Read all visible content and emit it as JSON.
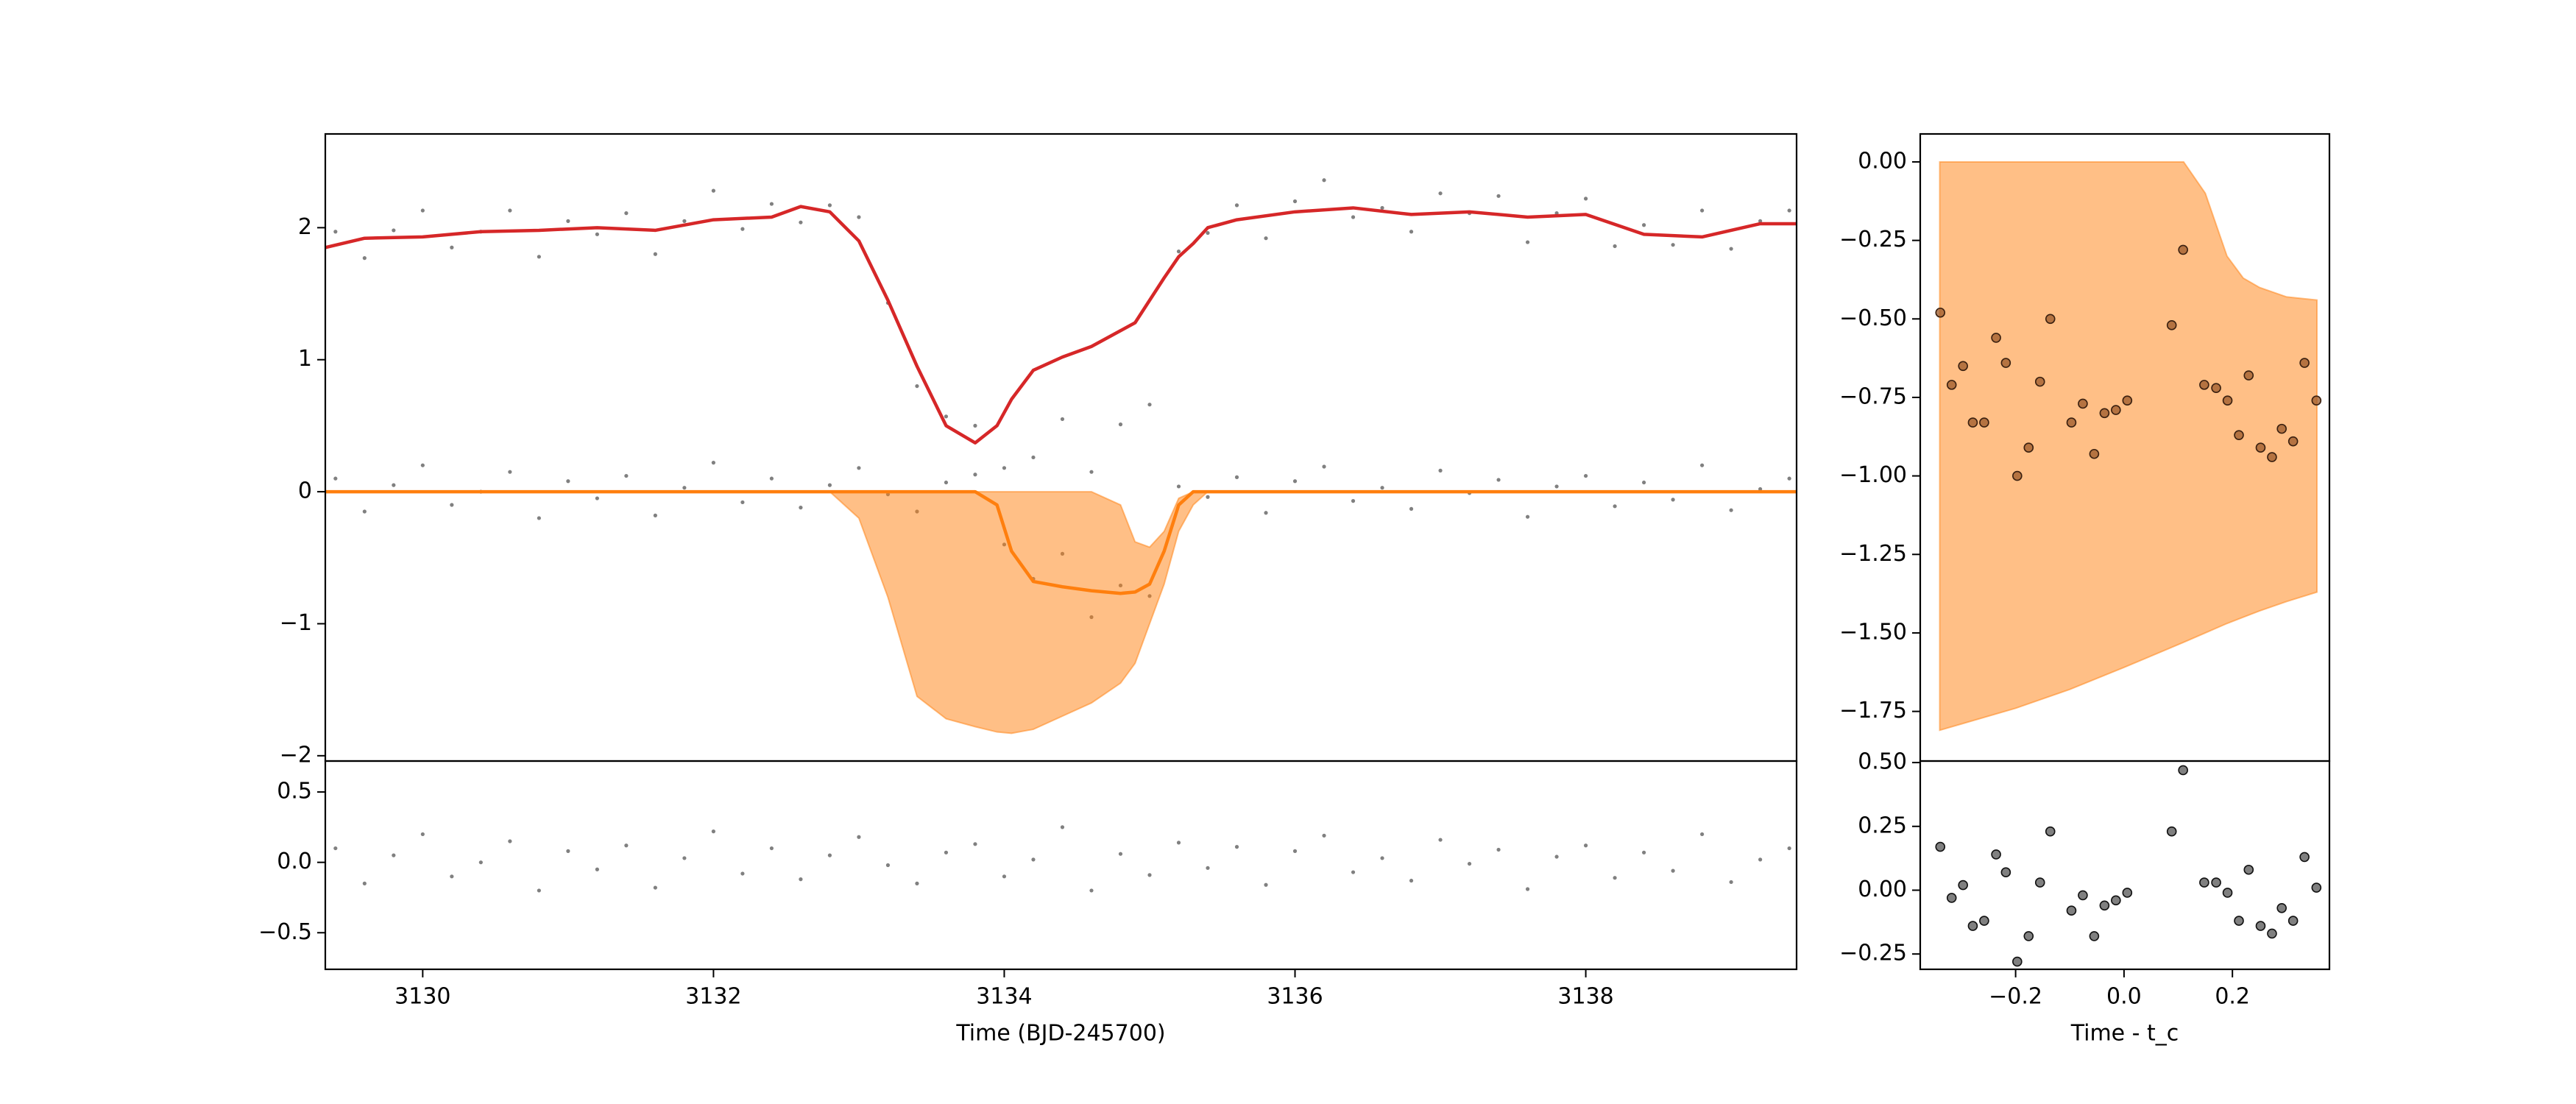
{
  "chart_data": [
    {
      "type": "line",
      "xlim": [
        3129.33,
        3139.45
      ],
      "ylim": [
        -2.04,
        2.71
      ],
      "yticks": [
        {
          "value": -2,
          "label": "−2"
        },
        {
          "value": -1,
          "label": "−1"
        },
        0,
        1,
        2
      ],
      "series": [
        {
          "type": "scatter",
          "color": "#808080",
          "x": [
            3129.4,
            3129.6,
            3129.8,
            3130.0,
            3130.2,
            3130.4,
            3130.6,
            3130.8,
            3131.0,
            3131.2,
            3131.4,
            3131.6,
            3131.8,
            3132.0,
            3132.2,
            3132.4,
            3132.6,
            3132.8,
            3133.0,
            3133.2,
            3133.4,
            3133.6,
            3133.8,
            3134.0,
            3134.2,
            3134.4,
            3134.6,
            3134.8,
            3135.0,
            3135.2,
            3135.4,
            3135.6,
            3135.8,
            3136.0,
            3136.2,
            3136.4,
            3136.6,
            3136.8,
            3137.0,
            3137.2,
            3137.4,
            3137.6,
            3137.8,
            3138.0,
            3138.2,
            3138.4,
            3138.6,
            3138.8,
            3139.0,
            3139.2,
            3139.4
          ],
          "values": [
            1.97,
            1.77,
            1.98,
            2.13,
            1.85,
            1.97,
            2.13,
            1.78,
            2.05,
            1.95,
            2.11,
            1.8,
            2.05,
            2.28,
            1.99,
            2.18,
            2.04,
            2.17,
            2.08,
            1.43,
            0.8,
            0.57,
            0.5,
            0.18,
            0.26,
            0.55,
            0.15,
            0.51,
            0.66,
            1.82,
            1.96,
            2.17,
            1.92,
            2.2,
            2.36,
            2.08,
            2.15,
            1.97,
            2.26,
            2.11,
            2.24,
            1.89,
            2.11,
            2.22,
            1.86,
            2.02,
            1.87,
            2.13,
            1.84,
            2.05,
            2.13
          ]
        },
        {
          "type": "scatter",
          "color": "#808080",
          "x": [
            3129.4,
            3129.6,
            3129.8,
            3130.0,
            3130.2,
            3130.4,
            3130.6,
            3130.8,
            3131.0,
            3131.2,
            3131.4,
            3131.6,
            3131.8,
            3132.0,
            3132.2,
            3132.4,
            3132.6,
            3132.8,
            3133.0,
            3133.2,
            3133.4,
            3133.6,
            3133.8,
            3134.0,
            3134.2,
            3134.4,
            3134.6,
            3134.8,
            3135.0,
            3135.2,
            3135.4,
            3135.6,
            3135.8,
            3136.0,
            3136.2,
            3136.4,
            3136.6,
            3136.8,
            3137.0,
            3137.2,
            3137.4,
            3137.6,
            3137.8,
            3138.0,
            3138.2,
            3138.4,
            3138.6,
            3138.8,
            3139.0,
            3139.2,
            3139.4
          ],
          "values": [
            0.1,
            -0.15,
            0.05,
            0.2,
            -0.1,
            0.0,
            0.15,
            -0.2,
            0.08,
            -0.05,
            0.12,
            -0.18,
            0.03,
            0.22,
            -0.08,
            0.1,
            -0.12,
            0.05,
            0.18,
            -0.02,
            -0.15,
            0.07,
            0.13,
            -0.4,
            -0.66,
            -0.47,
            -0.95,
            -0.71,
            -0.79,
            0.04,
            -0.04,
            0.11,
            -0.16,
            0.08,
            0.19,
            -0.07,
            0.03,
            -0.13,
            0.16,
            -0.01,
            0.09,
            -0.19,
            0.04,
            0.12,
            -0.11,
            0.07,
            -0.06,
            0.2,
            -0.14,
            0.02,
            0.1
          ]
        },
        {
          "type": "band",
          "color": "#ff7f0e",
          "alpha": 0.5,
          "x": [
            3129.33,
            3129.6,
            3130.0,
            3130.4,
            3130.8,
            3131.2,
            3131.6,
            3132.0,
            3132.4,
            3132.6,
            3132.8,
            3133.0,
            3133.2,
            3133.4,
            3133.6,
            3133.8,
            3133.95,
            3134.05,
            3134.2,
            3134.4,
            3134.6,
            3134.8,
            3134.9,
            3135.0,
            3135.1,
            3135.2,
            3135.3,
            3135.4,
            3135.6,
            3136.0,
            3136.4,
            3136.8,
            3137.2,
            3137.6,
            3138.0,
            3138.4,
            3138.8,
            3139.2,
            3139.45
          ],
          "values": [
            0,
            0,
            0,
            0,
            0,
            0,
            0,
            0,
            0,
            0,
            0,
            -0.2,
            -0.8,
            -1.55,
            -1.72,
            -1.78,
            -1.82,
            -1.83,
            -1.8,
            -1.7,
            -1.6,
            -1.45,
            -1.3,
            -1.0,
            -0.7,
            -0.3,
            -0.1,
            0,
            0,
            0,
            0,
            0,
            0,
            0,
            0,
            0,
            0,
            0,
            0
          ],
          "upper": [
            0,
            0,
            0,
            0,
            0,
            0,
            0,
            0,
            0,
            0,
            0,
            0,
            0,
            0,
            0,
            0,
            0,
            0,
            0,
            0,
            0,
            -0.1,
            -0.38,
            -0.42,
            -0.3,
            -0.05,
            0,
            0,
            0,
            0,
            0,
            0,
            0,
            0,
            0,
            0,
            0,
            0,
            0
          ]
        },
        {
          "type": "line",
          "color": "#d62728",
          "x": [
            3129.33,
            3129.6,
            3130.0,
            3130.4,
            3130.8,
            3131.2,
            3131.6,
            3132.0,
            3132.4,
            3132.6,
            3132.8,
            3133.0,
            3133.2,
            3133.4,
            3133.6,
            3133.8,
            3133.95,
            3134.05,
            3134.2,
            3134.4,
            3134.6,
            3134.8,
            3134.9,
            3135.0,
            3135.1,
            3135.2,
            3135.3,
            3135.4,
            3135.6,
            3136.0,
            3136.4,
            3136.8,
            3137.2,
            3137.6,
            3138.0,
            3138.4,
            3138.8,
            3139.2,
            3139.45
          ],
          "values": [
            1.85,
            1.92,
            1.93,
            1.97,
            1.98,
            2.0,
            1.98,
            2.06,
            2.08,
            2.16,
            2.12,
            1.9,
            1.45,
            0.95,
            0.5,
            0.37,
            0.5,
            0.7,
            0.92,
            1.02,
            1.1,
            1.22,
            1.28,
            1.45,
            1.62,
            1.78,
            1.88,
            2.0,
            2.06,
            2.12,
            2.15,
            2.1,
            2.12,
            2.08,
            2.1,
            1.95,
            1.93,
            2.03,
            2.03
          ]
        },
        {
          "type": "line",
          "color": "#ff7f0e",
          "x": [
            3129.33,
            3129.6,
            3130.0,
            3130.4,
            3130.8,
            3131.2,
            3131.6,
            3132.0,
            3132.4,
            3132.6,
            3132.8,
            3133.0,
            3133.2,
            3133.4,
            3133.6,
            3133.8,
            3133.95,
            3134.05,
            3134.2,
            3134.4,
            3134.6,
            3134.8,
            3134.9,
            3135.0,
            3135.1,
            3135.2,
            3135.3,
            3135.4,
            3135.6,
            3136.0,
            3136.4,
            3136.8,
            3137.2,
            3137.6,
            3138.0,
            3138.4,
            3138.8,
            3139.2,
            3139.45
          ],
          "values": [
            0,
            0,
            0,
            0,
            0,
            0,
            0,
            0,
            0,
            0,
            0,
            0,
            0,
            0,
            0,
            0,
            -0.1,
            -0.45,
            -0.68,
            -0.72,
            -0.75,
            -0.77,
            -0.76,
            -0.7,
            -0.45,
            -0.1,
            0,
            0,
            0,
            0,
            0,
            0,
            0,
            0,
            0,
            0,
            0,
            0,
            0
          ]
        }
      ]
    },
    {
      "type": "scatter",
      "x_label": "Time (BJD-245700)",
      "xlim": [
        3129.33,
        3139.45
      ],
      "xticks": [
        3130,
        3132,
        3134,
        3136,
        3138
      ],
      "ylim": [
        -0.76,
        0.72
      ],
      "yticks": [
        {
          "value": -0.5,
          "label": "−0.5"
        },
        {
          "value": 0,
          "label": "0.0"
        },
        {
          "value": 0.5,
          "label": "0.5"
        }
      ],
      "series": [
        {
          "color": "#808080",
          "x": [
            3129.4,
            3129.6,
            3129.8,
            3130.0,
            3130.2,
            3130.4,
            3130.6,
            3130.8,
            3131.0,
            3131.2,
            3131.4,
            3131.6,
            3131.8,
            3132.0,
            3132.2,
            3132.4,
            3132.6,
            3132.8,
            3133.0,
            3133.2,
            3133.4,
            3133.6,
            3133.8,
            3134.0,
            3134.2,
            3134.4,
            3134.6,
            3134.8,
            3135.0,
            3135.2,
            3135.4,
            3135.6,
            3135.8,
            3136.0,
            3136.2,
            3136.4,
            3136.6,
            3136.8,
            3137.0,
            3137.2,
            3137.4,
            3137.6,
            3137.8,
            3138.0,
            3138.2,
            3138.4,
            3138.6,
            3138.8,
            3139.0,
            3139.2,
            3139.4
          ],
          "values": [
            0.1,
            -0.15,
            0.05,
            0.2,
            -0.1,
            0.0,
            0.15,
            -0.2,
            0.08,
            -0.05,
            0.12,
            -0.18,
            0.03,
            0.22,
            -0.08,
            0.1,
            -0.12,
            0.05,
            0.18,
            -0.02,
            -0.15,
            0.07,
            0.13,
            -0.1,
            0.02,
            0.25,
            -0.2,
            0.06,
            -0.09,
            0.14,
            -0.04,
            0.11,
            -0.16,
            0.08,
            0.19,
            -0.07,
            0.03,
            -0.13,
            0.16,
            -0.01,
            0.09,
            -0.19,
            0.04,
            0.12,
            -0.11,
            0.07,
            -0.06,
            0.2,
            -0.14,
            0.02,
            0.1
          ]
        }
      ]
    },
    {
      "type": "line",
      "xlim": [
        -0.376,
        0.379
      ],
      "ylim": [
        -1.908,
        0.089
      ],
      "yticks": [
        {
          "value": 0,
          "label": "0.00"
        },
        {
          "value": -0.25,
          "label": "−0.25"
        },
        {
          "value": -0.5,
          "label": "−0.50"
        },
        {
          "value": -0.75,
          "label": "−0.75"
        },
        {
          "value": -1.0,
          "label": "−1.00"
        },
        {
          "value": -1.25,
          "label": "−1.25"
        },
        {
          "value": -1.5,
          "label": "−1.50"
        },
        {
          "value": -1.75,
          "label": "−1.75"
        }
      ],
      "series": [
        {
          "type": "band",
          "color": "#ff7f0e",
          "alpha": 0.5,
          "x": [
            -0.34,
            -0.2,
            -0.1,
            0.0,
            0.11,
            0.15,
            0.19,
            0.22,
            0.25,
            0.3,
            0.356
          ],
          "values": [
            -1.81,
            -1.74,
            -1.68,
            -1.61,
            -1.53,
            -1.5,
            -1.47,
            -1.45,
            -1.43,
            -1.4,
            -1.37
          ],
          "upper": [
            0,
            0,
            0,
            0,
            0,
            -0.1,
            -0.3,
            -0.37,
            -0.4,
            -0.43,
            -0.44
          ]
        },
        {
          "type": "scatter",
          "color": "#9c5a2a",
          "edgecolor": "#3a2010",
          "x": [
            -0.339,
            -0.318,
            -0.297,
            -0.279,
            -0.258,
            -0.236,
            -0.218,
            -0.197,
            -0.176,
            -0.155,
            -0.136,
            -0.097,
            -0.076,
            -0.055,
            -0.036,
            -0.015,
            0.006,
            0.088,
            0.109,
            0.148,
            0.17,
            0.191,
            0.212,
            0.23,
            0.252,
            0.273,
            0.291,
            0.312,
            0.333,
            0.355
          ],
          "values": [
            -0.48,
            -0.71,
            -0.65,
            -0.83,
            -0.83,
            -0.56,
            -0.64,
            -1.0,
            -0.91,
            -0.7,
            -0.5,
            -0.83,
            -0.77,
            -0.93,
            -0.8,
            -0.79,
            -0.76,
            -0.52,
            -0.28,
            -0.71,
            -0.72,
            -0.76,
            -0.87,
            -0.68,
            -0.91,
            -0.94,
            -0.85,
            -0.89,
            -0.64,
            -0.76
          ]
        }
      ]
    },
    {
      "type": "scatter",
      "x_label": "Time - t_c",
      "xlim": [
        -0.376,
        0.379
      ],
      "xticks": [
        {
          "value": -0.2,
          "label": "−0.2"
        },
        {
          "value": 0,
          "label": "0.0"
        },
        {
          "value": 0.2,
          "label": "0.2"
        }
      ],
      "ylim": [
        -0.31,
        0.506
      ],
      "yticks": [
        {
          "value": 0.5,
          "label": "0.50"
        },
        {
          "value": 0.25,
          "label": "0.25"
        },
        {
          "value": 0,
          "label": "0.00"
        },
        {
          "value": -0.25,
          "label": "−0.25"
        }
      ],
      "series": [
        {
          "color": "#555555",
          "edgecolor": "#111111",
          "x": [
            -0.339,
            -0.318,
            -0.297,
            -0.279,
            -0.258,
            -0.236,
            -0.218,
            -0.197,
            -0.176,
            -0.155,
            -0.136,
            -0.097,
            -0.076,
            -0.055,
            -0.036,
            -0.015,
            0.006,
            0.088,
            0.109,
            0.148,
            0.17,
            0.191,
            0.212,
            0.23,
            0.252,
            0.273,
            0.291,
            0.312,
            0.333,
            0.355
          ],
          "values": [
            0.17,
            -0.03,
            0.02,
            -0.14,
            -0.12,
            0.14,
            0.07,
            -0.28,
            -0.18,
            0.03,
            0.23,
            -0.08,
            -0.02,
            -0.18,
            -0.06,
            -0.04,
            -0.01,
            0.23,
            0.47,
            0.03,
            0.03,
            -0.01,
            -0.12,
            0.08,
            -0.14,
            -0.17,
            -0.07,
            -0.12,
            0.13,
            0.01
          ]
        }
      ]
    }
  ]
}
